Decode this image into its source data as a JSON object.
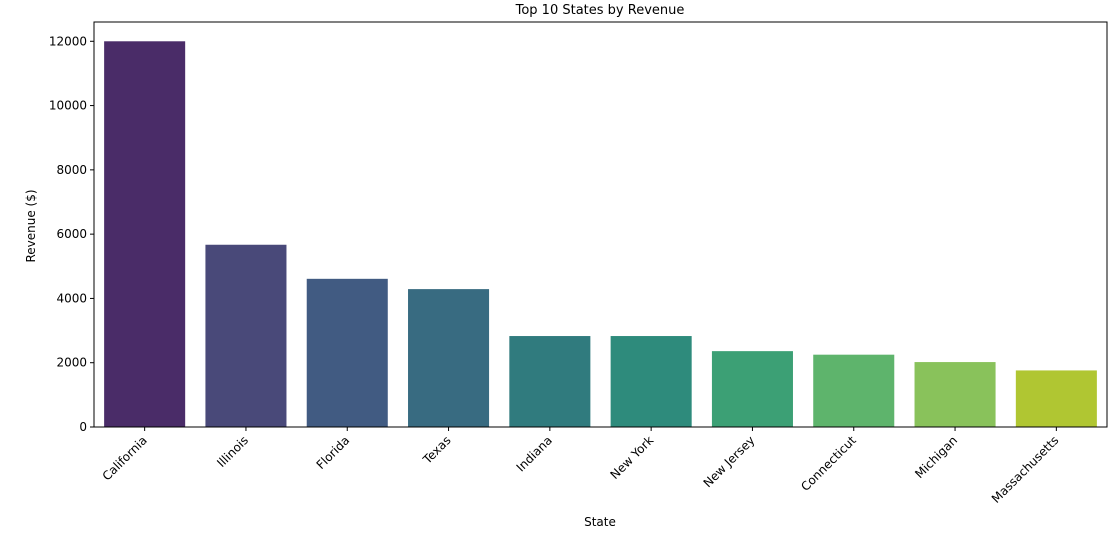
{
  "chart_data": {
    "type": "bar",
    "title": "Top 10 States by Revenue",
    "xlabel": "State",
    "ylabel": "Revenue ($)",
    "categories": [
      "California",
      "Illinois",
      "Florida",
      "Texas",
      "Indiana",
      "New York",
      "New Jersey",
      "Connecticut",
      "Michigan",
      "Massachusetts"
    ],
    "values": [
      12000,
      5670,
      4610,
      4290,
      2830,
      2830,
      2360,
      2250,
      2020,
      1760
    ],
    "colors": [
      "#4a2c68",
      "#494979",
      "#415b82",
      "#386b81",
      "#307b7e",
      "#2e8b7c",
      "#3ca075",
      "#5eb46c",
      "#89c25b",
      "#b0c632"
    ],
    "ylim": [
      0,
      12600
    ],
    "yticks": [
      0,
      2000,
      4000,
      6000,
      8000,
      10000,
      12000
    ],
    "grid": false,
    "legend": "none"
  }
}
